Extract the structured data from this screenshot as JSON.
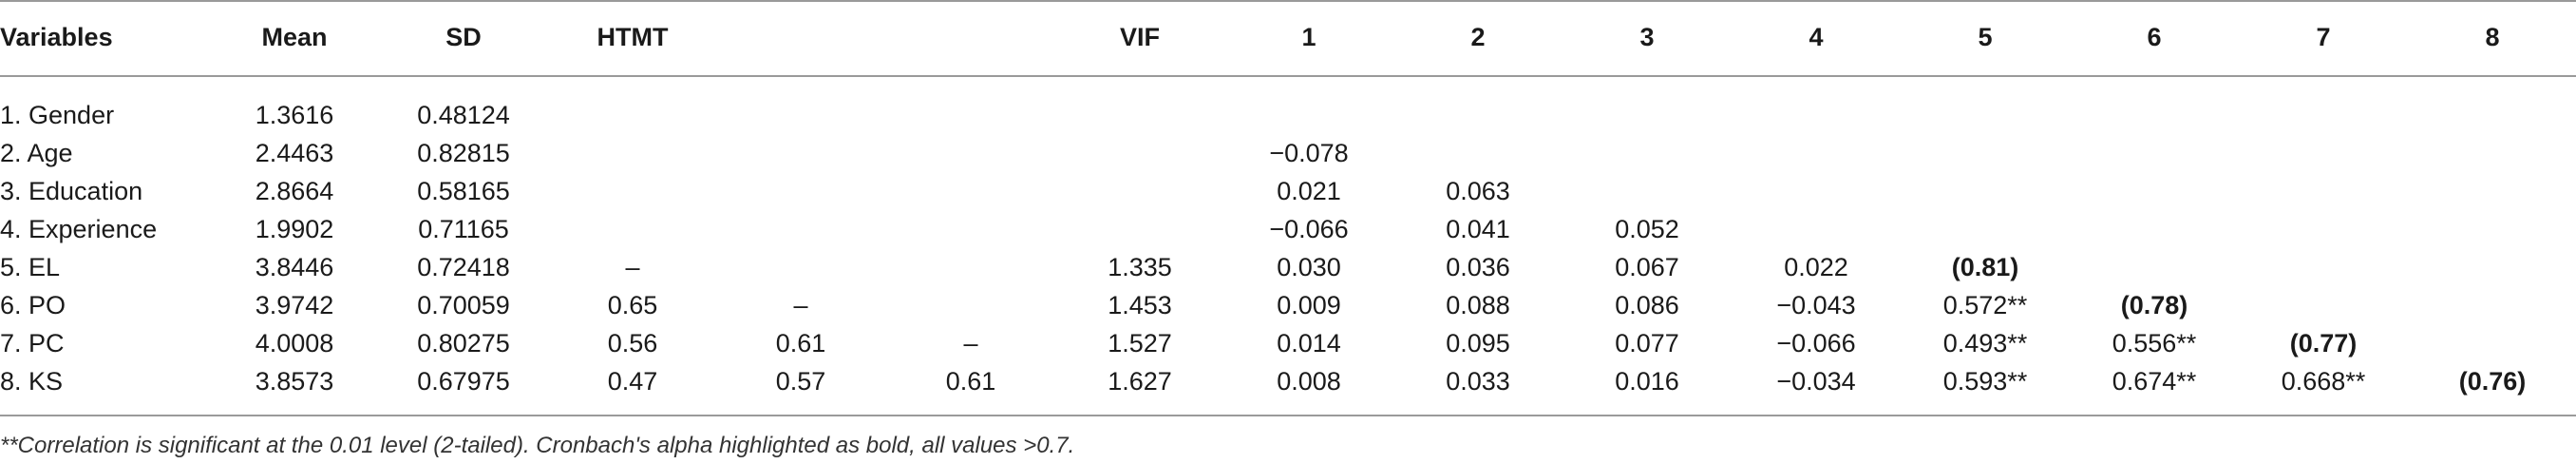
{
  "table": {
    "headers": [
      "Variables",
      "Mean",
      "SD",
      "HTMT",
      "",
      "",
      "VIF",
      "1",
      "2",
      "3",
      "4",
      "5",
      "6",
      "7",
      "8"
    ],
    "rows": [
      [
        "1. Gender",
        "1.3616",
        "0.48124",
        "",
        "",
        "",
        "",
        "",
        "",
        "",
        "",
        "",
        "",
        "",
        ""
      ],
      [
        "2. Age",
        "2.4463",
        "0.82815",
        "",
        "",
        "",
        "",
        "−0.078",
        "",
        "",
        "",
        "",
        "",
        "",
        ""
      ],
      [
        "3. Education",
        "2.8664",
        "0.58165",
        "",
        "",
        "",
        "",
        "0.021",
        "0.063",
        "",
        "",
        "",
        "",
        "",
        ""
      ],
      [
        "4. Experience",
        "1.9902",
        "0.71165",
        "",
        "",
        "",
        "",
        "−0.066",
        "0.041",
        "0.052",
        "",
        "",
        "",
        "",
        ""
      ],
      [
        "5. EL",
        "3.8446",
        "0.72418",
        "–",
        "",
        "",
        "1.335",
        "0.030",
        "0.036",
        "0.067",
        "0.022",
        "(0.81)",
        "",
        "",
        ""
      ],
      [
        "6. PO",
        "3.9742",
        "0.70059",
        "0.65",
        "–",
        "",
        "1.453",
        "0.009",
        "0.088",
        "0.086",
        "−0.043",
        "0.572**",
        "(0.78)",
        "",
        ""
      ],
      [
        "7. PC",
        "4.0008",
        "0.80275",
        "0.56",
        "0.61",
        "–",
        "1.527",
        "0.014",
        "0.095",
        "0.077",
        "−0.066",
        "0.493**",
        "0.556**",
        "(0.77)",
        ""
      ],
      [
        "8. KS",
        "3.8573",
        "0.67975",
        "0.47",
        "0.57",
        "0.61",
        "1.627",
        "0.008",
        "0.033",
        "0.016",
        "−0.034",
        "0.593**",
        "0.674**",
        "0.668**",
        "(0.76)"
      ]
    ]
  },
  "footnote": "**Correlation is significant at the 0.01 level (2-tailed). Cronbach's alpha highlighted as bold, all values >0.7."
}
